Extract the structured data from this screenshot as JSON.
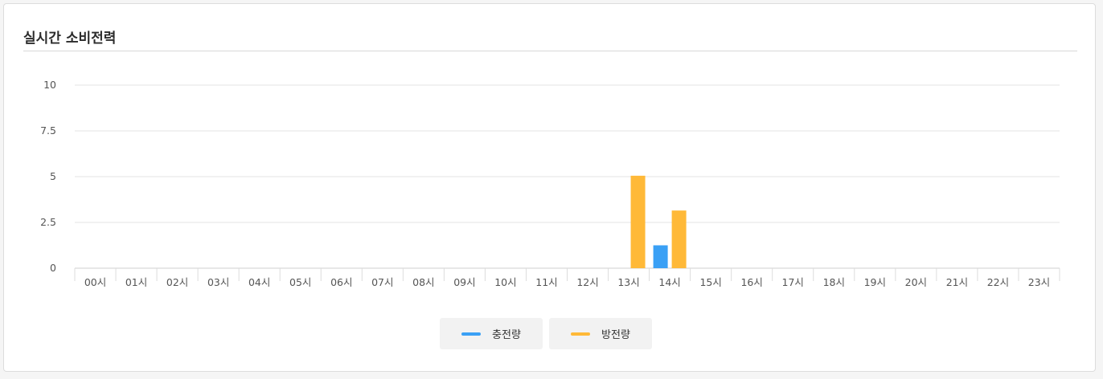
{
  "panel": {
    "title": "실시간 소비전력"
  },
  "chart_data": {
    "type": "bar",
    "categories": [
      "00시",
      "01시",
      "02시",
      "03시",
      "04시",
      "05시",
      "06시",
      "07시",
      "08시",
      "09시",
      "10시",
      "11시",
      "12시",
      "13시",
      "14시",
      "15시",
      "16시",
      "17시",
      "18시",
      "19시",
      "20시",
      "21시",
      "22시",
      "23시"
    ],
    "series": [
      {
        "name": "충전량",
        "color": "#3aa0f5",
        "values": [
          0,
          0,
          0,
          0,
          0,
          0,
          0,
          0,
          0,
          0,
          0,
          0,
          0,
          0,
          1.25,
          0,
          0,
          0,
          0,
          0,
          0,
          0,
          0,
          0
        ]
      },
      {
        "name": "방전량",
        "color": "#ffb938",
        "values": [
          0,
          0,
          0,
          0,
          0,
          0,
          0,
          0,
          0,
          0,
          0,
          0,
          0,
          5.05,
          3.15,
          0,
          0,
          0,
          0,
          0,
          0,
          0,
          0,
          0
        ]
      }
    ],
    "yticks": [
      "0",
      "2.5",
      "5",
      "7.5",
      "10"
    ],
    "ylim": [
      0,
      10
    ],
    "grid": true,
    "legend_position": "bottom-center"
  }
}
